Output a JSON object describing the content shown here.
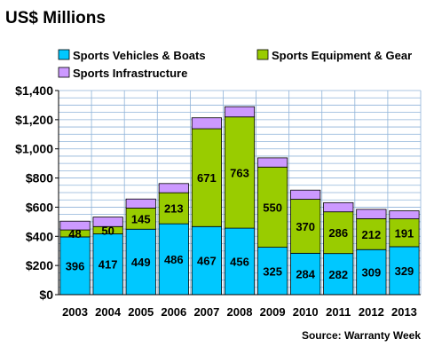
{
  "chart_data": {
    "type": "bar",
    "stacked": true,
    "title": "US$ Millions",
    "categories": [
      "2003",
      "2004",
      "2005",
      "2006",
      "2007",
      "2008",
      "2009",
      "2010",
      "2011",
      "2012",
      "2013"
    ],
    "series": [
      {
        "name": "Sports Vehicles & Boats",
        "color": "#00c8ff",
        "values": [
          396,
          417,
          449,
          486,
          467,
          456,
          325,
          284,
          282,
          309,
          329
        ],
        "labels": [
          "396",
          "417",
          "449",
          "486",
          "467",
          "456",
          "325",
          "284",
          "282",
          "309",
          "329"
        ]
      },
      {
        "name": "Sports Equipment & Gear",
        "color": "#99cc00",
        "values": [
          48,
          50,
          145,
          213,
          671,
          763,
          550,
          370,
          286,
          212,
          191
        ],
        "labels": [
          "48",
          "50",
          "145",
          "213",
          "671",
          "763",
          "550",
          "370",
          "286",
          "212",
          "191"
        ]
      },
      {
        "name": "Sports Infrastructure",
        "color": "#cc99ff",
        "values": [
          60,
          65,
          62,
          63,
          75,
          70,
          63,
          63,
          63,
          64,
          55
        ],
        "labels": [
          "",
          "",
          "",
          "",
          "",
          "",
          "",
          "",
          "",
          "",
          ""
        ]
      }
    ],
    "ylim": [
      0,
      1400
    ],
    "yticks": [
      0,
      200,
      400,
      600,
      800,
      1000,
      1200,
      1400
    ],
    "yticklabels": [
      "$0",
      "$200",
      "$400",
      "$600",
      "$800",
      "$1,000",
      "$1,200",
      "$1,400"
    ],
    "grid": true,
    "legend": "top",
    "source": "Source: Warranty Week"
  }
}
